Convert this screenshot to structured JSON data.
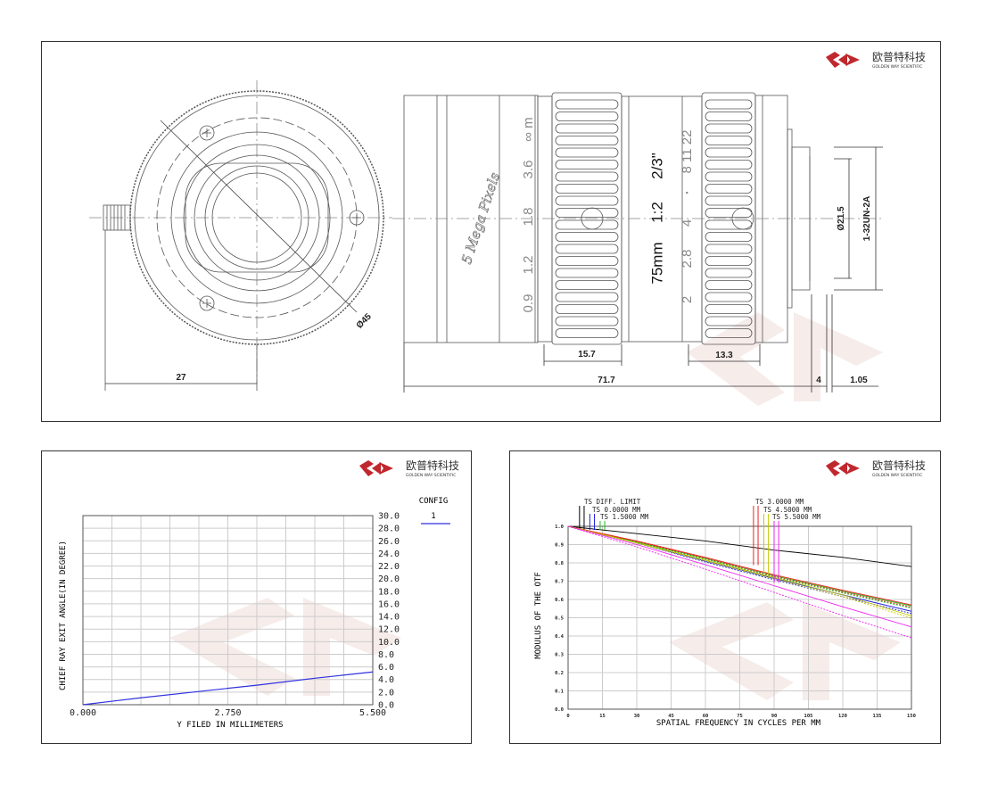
{
  "logo": {
    "cn": "欧普特科技",
    "en": "GOLDEN WAY SCIENTIFIC",
    "color": "#c0282d"
  },
  "drawing": {
    "front_dims": {
      "width": "27",
      "diameter": "Ø45"
    },
    "focus_scale": [
      "0.9",
      "1.2",
      "1.8",
      "3.6",
      "∞ m"
    ],
    "iris_scale": [
      "2",
      "2.8",
      "4",
      "•",
      "8 11 22"
    ],
    "specs": {
      "focal": "75mm",
      "aperture": "1:2",
      "format": "2/3\""
    },
    "script_text": "5 Mega Pixels",
    "side_dims": {
      "focus_ring": "15.7",
      "iris_ring": "13.3",
      "length": "71.7",
      "flange": "4",
      "thread_len": "1.05",
      "thread_dia": "Ø21.5",
      "thread": "1-32UN-2A"
    }
  },
  "chart_data": [
    {
      "type": "line",
      "title": "",
      "xlabel": "Y FILED IN MILLIMETERS",
      "ylabel": "CHIEF RAY EXIT ANGLE(IN DEGREE)",
      "xlim": [
        0,
        5.5
      ],
      "ylim": [
        0,
        30
      ],
      "x_ticks": [
        "0.000",
        "2.750",
        "5.500"
      ],
      "y_ticks": [
        "0.0",
        "2.0",
        "4.0",
        "6.0",
        "8.0",
        "10.0",
        "12.0",
        "14.0",
        "16.0",
        "18.0",
        "20.0",
        "22.0",
        "24.0",
        "26.0",
        "28.0",
        "30.0"
      ],
      "grid": true,
      "legend": {
        "title": "CONFIG",
        "placement": "right"
      },
      "series": [
        {
          "name": "1",
          "color": "#3030e0",
          "x": [
            0,
            1.1,
            2.2,
            3.3,
            4.4,
            5.5
          ],
          "y": [
            0,
            1.1,
            2.1,
            3.1,
            4.2,
            5.2
          ]
        }
      ]
    },
    {
      "type": "line",
      "title": "",
      "xlabel": "SPATIAL FREQUENCY IN CYCLES PER MM",
      "ylabel": "MODULUS OF THE OTF",
      "xlim": [
        0,
        150
      ],
      "ylim": [
        0,
        1
      ],
      "x_ticks": [
        "0",
        "15",
        "30",
        "45",
        "60",
        "75",
        "90",
        "105",
        "120",
        "135",
        "150"
      ],
      "y_ticks": [
        "0.0",
        "0.1",
        "0.2",
        "0.3",
        "0.4",
        "0.5",
        "0.6",
        "0.7",
        "0.8",
        "0.9",
        "1.0"
      ],
      "grid": true,
      "legend": {
        "placement": "top"
      },
      "x": [
        0,
        30,
        60,
        90,
        120,
        150
      ],
      "series": [
        {
          "name": "TS DIFF. LIMIT",
          "color": "#000000",
          "values": [
            1,
            0.96,
            0.92,
            0.87,
            0.83,
            0.78
          ]
        },
        {
          "name": "TS 0.0000 MM",
          "color": "#2020e0",
          "values": [
            1,
            0.91,
            0.81,
            0.715,
            0.625,
            0.535
          ]
        },
        {
          "name": "TS 1.5000 MM",
          "color": "#20c020",
          "values": [
            1,
            0.915,
            0.825,
            0.73,
            0.645,
            0.565
          ]
        },
        {
          "name": "TS 3.0000 MM",
          "color": "#f02020",
          "values": [
            1,
            0.92,
            0.83,
            0.735,
            0.65,
            0.57
          ]
        },
        {
          "name": "TS 4.5000 MM",
          "color": "#c8c800",
          "values": [
            1,
            0.91,
            0.815,
            0.72,
            0.625,
            0.51
          ]
        },
        {
          "name": "TS 5.5000 MM",
          "color": "#f020f0",
          "values": [
            1,
            0.9,
            0.79,
            0.675,
            0.56,
            0.45
          ]
        }
      ]
    }
  ]
}
